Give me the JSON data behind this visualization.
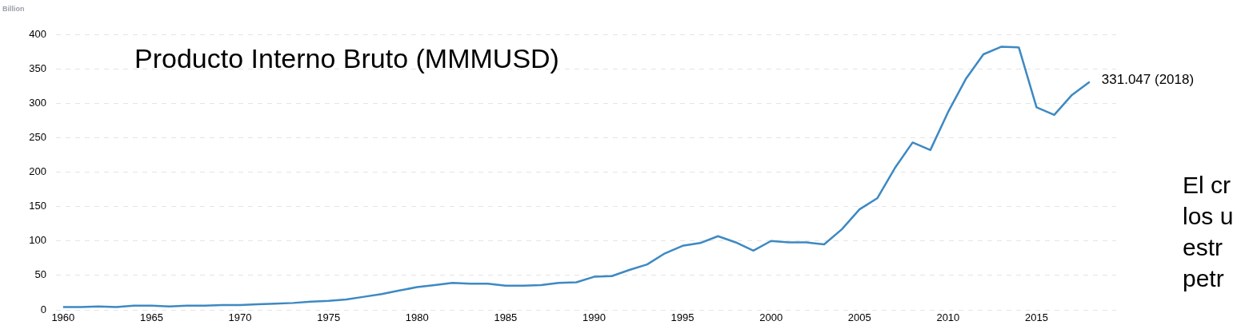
{
  "chart_data": {
    "type": "line",
    "title": "Producto Interno Bruto (MMMUSD)",
    "ylabel": "Billion",
    "x": [
      1960,
      1961,
      1962,
      1963,
      1964,
      1965,
      1966,
      1967,
      1968,
      1969,
      1970,
      1971,
      1972,
      1973,
      1974,
      1975,
      1976,
      1977,
      1978,
      1979,
      1980,
      1981,
      1982,
      1983,
      1984,
      1985,
      1986,
      1987,
      1988,
      1989,
      1990,
      1991,
      1992,
      1993,
      1994,
      1995,
      1996,
      1997,
      1998,
      1999,
      2000,
      2001,
      2002,
      2003,
      2004,
      2005,
      2006,
      2007,
      2008,
      2009,
      2010,
      2011,
      2012,
      2013,
      2014,
      2015,
      2016,
      2017,
      2018
    ],
    "series": [
      {
        "color": "#3d89c3",
        "values": [
          4,
          4,
          5,
          4,
          6,
          6,
          5,
          6,
          6,
          7,
          7,
          8,
          9,
          10,
          12,
          13,
          15,
          19,
          23,
          28,
          33,
          36,
          39,
          38,
          38,
          35,
          35,
          36,
          39,
          40,
          48,
          49,
          58,
          66,
          82,
          93,
          97,
          107,
          98,
          86,
          100,
          98,
          98,
          95,
          117,
          146,
          162,
          206,
          243,
          232,
          287,
          335,
          371,
          382,
          381,
          294,
          283,
          312,
          331.047
        ]
      }
    ],
    "xlim": [
      1959.6,
      2019.5
    ],
    "xticks": [
      1960,
      1965,
      1970,
      1975,
      1980,
      1985,
      1990,
      1995,
      2000,
      2005,
      2010,
      2015
    ],
    "ylim": [
      0,
      400
    ],
    "yticks": [
      0,
      50,
      100,
      150,
      200,
      250,
      300,
      350,
      400
    ],
    "grid": "y",
    "legend": false,
    "marker": "none",
    "line_style": "solid",
    "annotations": [
      {
        "text": "331.047 (2018)",
        "x": 2018,
        "y": 331.047
      },
      "El cr",
      "los u",
      "estr",
      "petr"
    ]
  }
}
